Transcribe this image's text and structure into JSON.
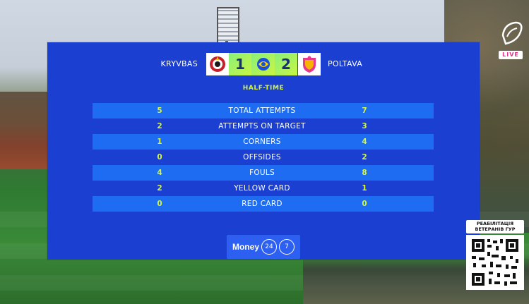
{
  "match": {
    "home_team": "KRYVBAS",
    "away_team": "POLTAVA",
    "home_score": "1",
    "away_score": "2",
    "period": "HALF-TIME"
  },
  "stats": [
    {
      "home": "5",
      "label": "TOTAL ATTEMPTS",
      "away": "7"
    },
    {
      "home": "2",
      "label": "ATTEMPTS ON TARGET",
      "away": "3"
    },
    {
      "home": "1",
      "label": "CORNERS",
      "away": "4"
    },
    {
      "home": "0",
      "label": "OFFSIDES",
      "away": "2"
    },
    {
      "home": "4",
      "label": "FOULS",
      "away": "8"
    },
    {
      "home": "2",
      "label": "YELLOW CARD",
      "away": "1"
    },
    {
      "home": "0",
      "label": "RED CARD",
      "away": "0"
    }
  ],
  "sponsor": {
    "name": "Money",
    "suffix_a": "24",
    "suffix_b": "7"
  },
  "broadcaster": {
    "live_label": "LIVE"
  },
  "promo": {
    "title_line1": "РЕАБІЛІТАЦІЯ",
    "title_line2": "ВЕТЕРАНІВ ГУР"
  },
  "colors": {
    "panel": "#1b3fd0",
    "row_alt": "#1d6cf2",
    "accent": "#d4f53a",
    "score_bg": "#a8f25e"
  },
  "icons": {
    "home_crest": "kryvbas-crest-icon",
    "away_crest": "poltava-crest-icon",
    "league": "league-logo-icon",
    "qr": "qr-code-icon"
  }
}
